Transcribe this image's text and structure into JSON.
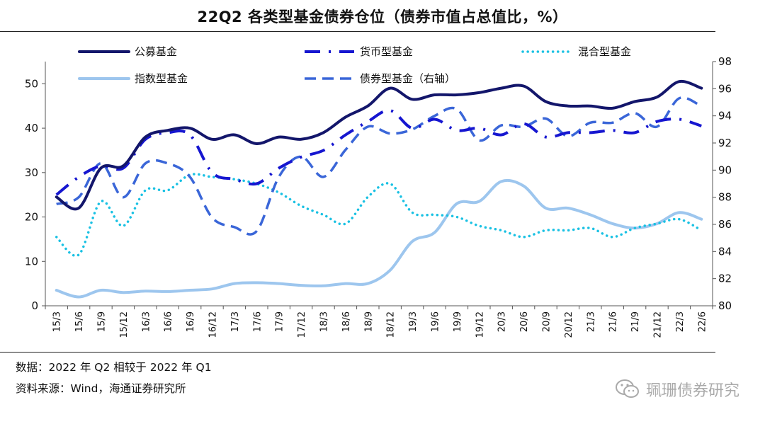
{
  "title": "22Q2 各类型基金债券仓位（债券市值占总值比，%）",
  "footer": {
    "line1": "数据：2022 年 Q2 相较于 2022 年 Q1",
    "line2": "资料来源：Wind，海通证券研究所"
  },
  "watermark": "珮珊债券研究",
  "chart_data": {
    "type": "line",
    "title": "22Q2 各类型基金债券仓位（债券市值占总值比，%）",
    "x": [
      "15/3",
      "15/6",
      "15/9",
      "15/12",
      "16/3",
      "16/6",
      "16/9",
      "16/12",
      "17/3",
      "17/6",
      "17/9",
      "17/12",
      "18/3",
      "18/6",
      "18/9",
      "18/12",
      "19/3",
      "19/6",
      "19/9",
      "19/12",
      "20/3",
      "20/6",
      "20/9",
      "20/12",
      "21/3",
      "21/6",
      "21/9",
      "21/12",
      "22/3",
      "22/6"
    ],
    "ylim_left": [
      0,
      55
    ],
    "yticks_left": [
      "0",
      "10",
      "20",
      "30",
      "40",
      "50"
    ],
    "ylim_right": [
      80,
      98
    ],
    "yticks_right": [
      "80",
      "82",
      "84",
      "86",
      "88",
      "90",
      "92",
      "94",
      "96",
      "98"
    ],
    "series": [
      {
        "name": "公募基金",
        "axis": "left",
        "color": "#13166b",
        "values": [
          24.5,
          22,
          31,
          31.5,
          38,
          39.5,
          40,
          37.5,
          38.5,
          36.5,
          38,
          37.5,
          39,
          42.5,
          45,
          49,
          46.5,
          47.5,
          47.5,
          48,
          49,
          49.5,
          46,
          45,
          45,
          44.5,
          46,
          47,
          50.5,
          49
        ]
      },
      {
        "name": "货币型基金",
        "axis": "left",
        "color": "#1616d0",
        "values": [
          25,
          29,
          31.5,
          31,
          37.5,
          39,
          38.5,
          30,
          28.5,
          27.5,
          31,
          33.5,
          35,
          38.5,
          41.5,
          44,
          40,
          42,
          39.5,
          40,
          38.5,
          41,
          38,
          39,
          39,
          39.5,
          39,
          41.5,
          42,
          40.5
        ]
      },
      {
        "name": "混合型基金",
        "axis": "left",
        "color": "#19c1e3",
        "values": [
          15.5,
          11.5,
          23.5,
          18,
          26,
          26,
          29.5,
          29,
          28.5,
          27.5,
          25.5,
          22.5,
          20.5,
          18.5,
          24.5,
          27.5,
          21,
          20.5,
          20,
          18,
          17,
          15.5,
          17,
          17,
          17.5,
          15.5,
          17.5,
          18.5,
          19.5,
          17
        ]
      },
      {
        "name": "指数型基金",
        "axis": "left",
        "color": "#9dc6ee",
        "values": [
          3.5,
          2,
          3.5,
          3,
          3.3,
          3.2,
          3.5,
          3.8,
          5,
          5.2,
          5,
          4.6,
          4.5,
          5,
          5,
          8,
          14.5,
          16.5,
          23,
          23.5,
          28,
          27,
          22,
          22,
          20.5,
          18.5,
          17.5,
          18.5,
          21,
          19.5
        ]
      },
      {
        "name": "债券型基金（右轴）",
        "axis": "right",
        "color": "#3a66d8",
        "values": [
          87.5,
          88,
          90.5,
          88,
          90.5,
          90.5,
          89.5,
          86.5,
          85.8,
          85.5,
          89.5,
          91,
          89.5,
          91.5,
          93.2,
          92.7,
          93,
          94,
          94.5,
          92.2,
          93.3,
          93.2,
          93.8,
          92.5,
          93.5,
          93.5,
          94.2,
          93.2,
          95.3,
          94.7
        ]
      }
    ],
    "legend": [
      "公募基金",
      "货币型基金",
      "混合型基金",
      "指数型基金",
      "债券型基金（右轴）"
    ]
  }
}
